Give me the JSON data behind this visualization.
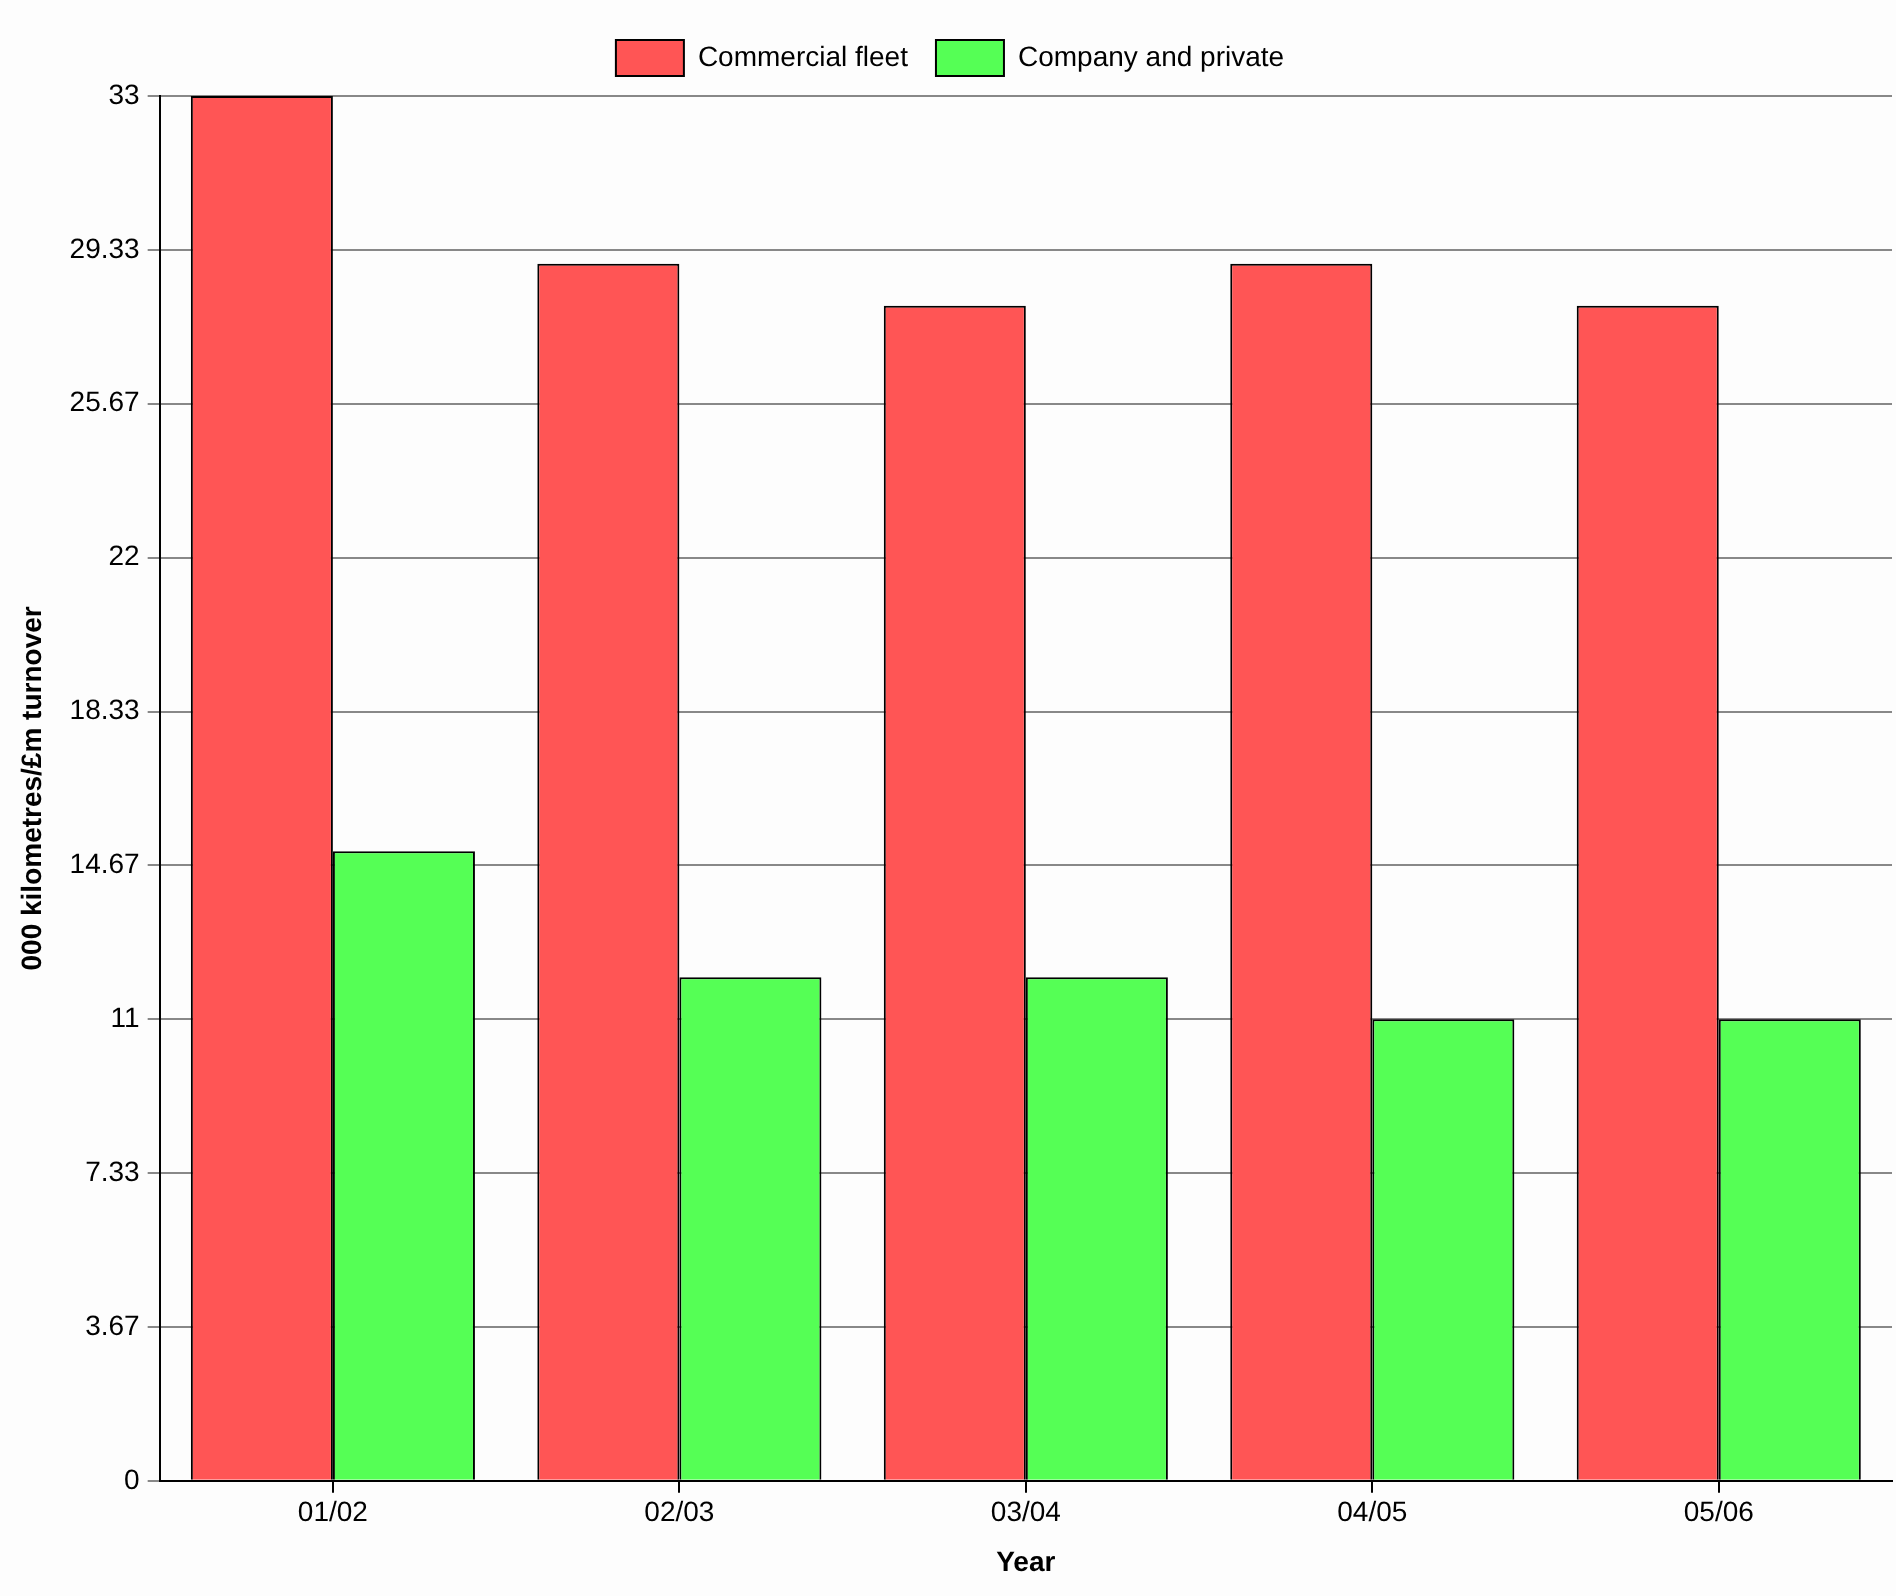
{
  "chart_data": {
    "type": "bar",
    "xlabel": "Year",
    "ylabel": "000 kilometres/£m turnover",
    "categories": [
      "01/02",
      "02/03",
      "03/04",
      "04/05",
      "05/06"
    ],
    "series": [
      {
        "name": "Commercial fleet",
        "color": "#ff5555",
        "values": [
          33,
          29,
          28,
          29,
          28
        ]
      },
      {
        "name": "Company and private",
        "color": "#55ff55",
        "values": [
          15,
          12,
          12,
          11,
          11
        ]
      }
    ],
    "ylim": [
      0,
      33
    ],
    "yticks": [
      0,
      3.67,
      7.33,
      11,
      14.67,
      18.33,
      22,
      25.67,
      29.33,
      33
    ],
    "grid": "y",
    "legend": "top"
  }
}
